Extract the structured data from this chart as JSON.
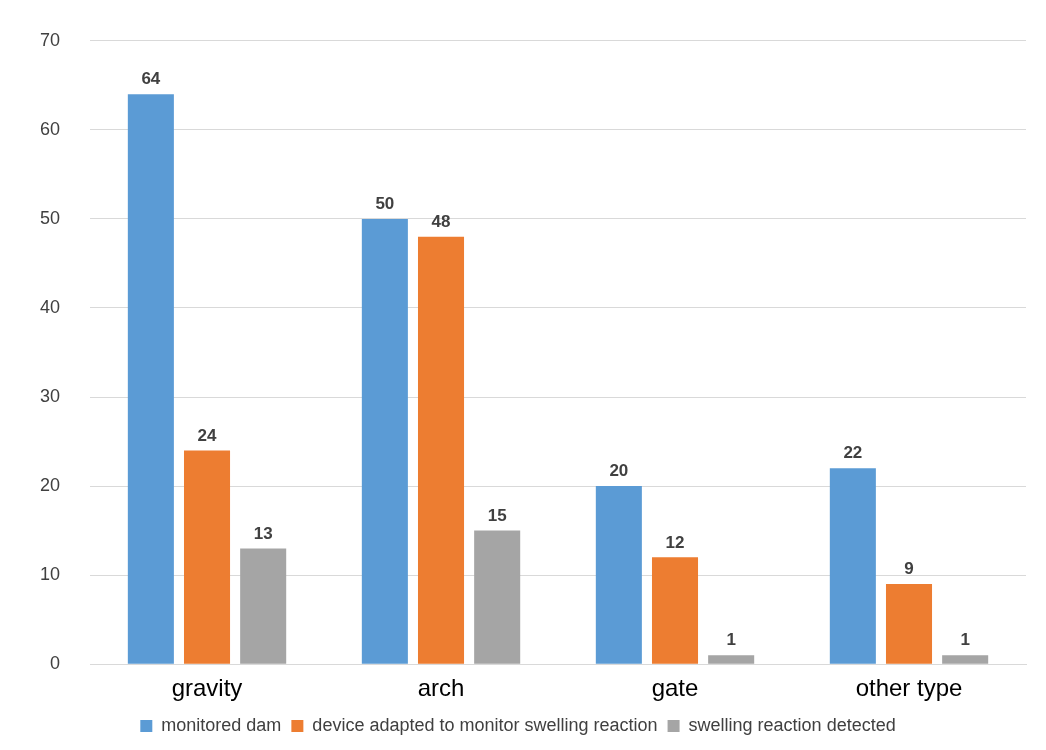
{
  "chart_data": {
    "type": "bar",
    "categories": [
      "gravity",
      "arch",
      "gate",
      "other type"
    ],
    "series": [
      {
        "name": "monitored dam",
        "color": "#5b9bd5",
        "values": [
          64,
          50,
          20,
          22
        ]
      },
      {
        "name": "device adapted to monitor swelling reaction",
        "color": "#ed7d31",
        "values": [
          24,
          48,
          12,
          9
        ]
      },
      {
        "name": "swelling reaction detected",
        "color": "#a5a5a5",
        "values": [
          13,
          15,
          1,
          1
        ]
      }
    ],
    "ylim": [
      0,
      70
    ],
    "yticks": [
      0,
      10,
      20,
      30,
      40,
      50,
      60,
      70
    ],
    "grid": "y",
    "legend": "bottom",
    "data_labels": true
  }
}
